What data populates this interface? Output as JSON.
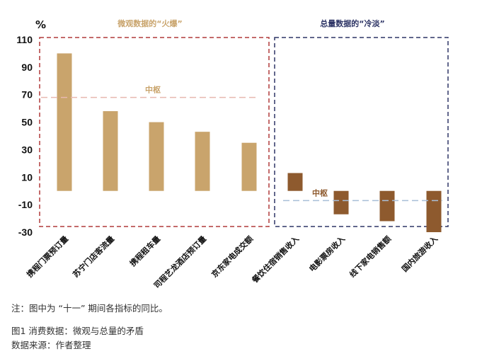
{
  "chart_data": {
    "type": "bar",
    "unit_label": "%",
    "ylim": [
      -30,
      110
    ],
    "yticks": [
      110,
      90,
      70,
      50,
      30,
      10,
      -10,
      -30
    ],
    "grid": false,
    "panels": [
      {
        "title": "微观数据的“火爆”",
        "title_color": "#C9A46C",
        "border_color": "#B03A3A",
        "bar_color": "#C9A46C",
        "categories": [
          "携程门票预订量",
          "苏宁门店客流量",
          "携程租车量",
          "司程艺龙酒店预订量",
          "京东家电成交额"
        ],
        "values": [
          100,
          58,
          50,
          43,
          35
        ],
        "pivot": {
          "label": "中枢",
          "value": 68,
          "color": "#E8B8B0",
          "label_color": "#C9A46C"
        }
      },
      {
        "title": "总量数据的“冷淡”",
        "title_color": "#2E3566",
        "border_color": "#2E3566",
        "bar_color": "#8E5A2E",
        "categories": [
          "餐饮住宿销售收入",
          "电影票房收入",
          "线下家电销售额",
          "国内旅游收入"
        ],
        "values": [
          13,
          -17,
          -22,
          -30
        ],
        "pivot": {
          "label": "中枢",
          "value": -7,
          "color": "#A9BFD8",
          "label_color": "#8E5A2E"
        }
      }
    ]
  },
  "footnote": "注：图中为 “十一” 期间各指标的同比。",
  "caption": "图1 消费数据：微观与总量的矛盾",
  "source": "数据来源：作者整理"
}
